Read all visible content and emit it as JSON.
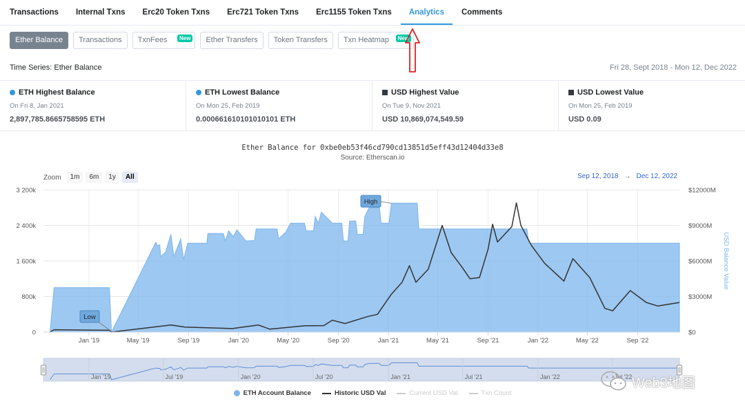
{
  "tabs": [
    {
      "label": "Transactions",
      "active": false
    },
    {
      "label": "Internal Txns",
      "active": false
    },
    {
      "label": "Erc20 Token Txns",
      "active": false
    },
    {
      "label": "Erc721 Token Txns",
      "active": false
    },
    {
      "label": "Erc1155 Token Txns",
      "active": false
    },
    {
      "label": "Analytics",
      "active": true
    },
    {
      "label": "Comments",
      "active": false
    }
  ],
  "subtabs": [
    {
      "label": "Ether Balance",
      "active": true,
      "badge": ""
    },
    {
      "label": "Transactions",
      "active": false,
      "badge": ""
    },
    {
      "label": "TxnFees",
      "active": false,
      "badge": "New"
    },
    {
      "label": "Ether Transfers",
      "active": false,
      "badge": ""
    },
    {
      "label": "Token Transfers",
      "active": false,
      "badge": ""
    },
    {
      "label": "Txn Heatmap",
      "active": false,
      "badge": "New"
    }
  ],
  "time_series": {
    "title": "Time Series: Ether Balance",
    "range": "Fri 28, Sept 2018 - Mon 12, Dec 2022"
  },
  "stats": [
    {
      "title": "ETH Highest Balance",
      "marker": "circle",
      "color": "#3498db",
      "date": "On Fri 8, Jan 2021",
      "value": "2,897,785.8665758595 ETH"
    },
    {
      "title": "ETH Lowest Balance",
      "marker": "circle",
      "color": "#3498db",
      "date": "On Mon 25, Feb 2019",
      "value": "0.000661610101010101 ETH"
    },
    {
      "title": "USD Highest Value",
      "marker": "square",
      "color": "#343a40",
      "date": "On Tue 9, Nov 2021",
      "value": "USD 10,869,074,549.59"
    },
    {
      "title": "USD Lowest Value",
      "marker": "square",
      "color": "#343a40",
      "date": "On Mon 25, Feb 2019",
      "value": "USD 0.09"
    }
  ],
  "chart": {
    "title": "Ether Balance for 0xbe0eb53f46cd790cd13851d5eff43d12404d33e8",
    "subtitle": "Source: Etherscan.io",
    "zoom_label": "Zoom",
    "zoom_buttons": [
      {
        "label": "1m",
        "selected": false
      },
      {
        "label": "6m",
        "selected": false
      },
      {
        "label": "1y",
        "selected": false
      },
      {
        "label": "All",
        "selected": true
      }
    ],
    "range_from": "Sep 12, 2018",
    "range_to": "Dec 12, 2022",
    "range_sep": "→",
    "legend": [
      {
        "label": "ETH Account Balance",
        "kind": "dot",
        "enabled": true,
        "color": "#7cb5ec"
      },
      {
        "label": "Historic USD Val",
        "kind": "line",
        "enabled": true,
        "color": "#333333"
      },
      {
        "label": "Current USD Val",
        "kind": "line",
        "enabled": false,
        "color": "#cccccc"
      },
      {
        "label": "Txn Count",
        "kind": "line",
        "enabled": false,
        "color": "#cccccc"
      }
    ],
    "navigator_ticks": [
      "Jan '19",
      "Jul '19",
      "Jan '20",
      "Jul '20",
      "Jan '21",
      "Jul '21",
      "Jan '22",
      "Jul '22"
    ]
  },
  "chart_data": {
    "type": "area",
    "x_start": "2018-09-12",
    "x_end": "2022-12-12",
    "x_tick_labels": [
      "Jan '19",
      "May '19",
      "Sep '19",
      "Jan '20",
      "May '20",
      "Sep '20",
      "Jan '21",
      "May '21",
      "Sep '21",
      "Jan '22",
      "May '22",
      "Sep '22"
    ],
    "y_left": {
      "ticks": [
        "0",
        "800k",
        "1 600k",
        "2 400k",
        "3 200k"
      ],
      "range": [
        0,
        3200000
      ]
    },
    "y_right": {
      "label": "USD Balance Value",
      "ticks": [
        "$0",
        "$3000M",
        "$6000M",
        "$9000M",
        "$12000M"
      ],
      "range": [
        0,
        12000
      ]
    },
    "annotations": [
      {
        "label": "High",
        "date": "2021-01-08",
        "value": 2897786
      },
      {
        "label": "Low",
        "date": "2019-02-25",
        "value": 0
      }
    ],
    "series": [
      {
        "name": "ETH Account Balance",
        "axis": "left",
        "unit": "ETH",
        "points": [
          [
            "2018-09-28",
            0
          ],
          [
            "2018-10-08",
            1000000
          ],
          [
            "2019-02-20",
            1000000
          ],
          [
            "2019-02-25",
            0
          ],
          [
            "2019-06-13",
            2020000
          ],
          [
            "2019-06-17",
            1950000
          ],
          [
            "2019-06-23",
            1960000
          ],
          [
            "2019-06-25",
            1700000
          ],
          [
            "2019-07-07",
            1800000
          ],
          [
            "2019-07-20",
            2200000
          ],
          [
            "2019-07-27",
            1700000
          ],
          [
            "2019-08-13",
            2100000
          ],
          [
            "2019-08-20",
            1630000
          ],
          [
            "2019-08-30",
            2000000
          ],
          [
            "2019-10-16",
            2000000
          ],
          [
            "2019-10-18",
            2220000
          ],
          [
            "2019-11-25",
            2220000
          ],
          [
            "2019-11-30",
            2050000
          ],
          [
            "2019-12-08",
            2280000
          ],
          [
            "2019-12-19",
            2150000
          ],
          [
            "2019-12-28",
            2300000
          ],
          [
            "2020-01-19",
            2050000
          ],
          [
            "2020-02-09",
            2060000
          ],
          [
            "2020-02-13",
            2320000
          ],
          [
            "2020-04-04",
            2320000
          ],
          [
            "2020-04-08",
            2100000
          ],
          [
            "2020-04-25",
            2250000
          ],
          [
            "2020-05-07",
            2450000
          ],
          [
            "2020-06-10",
            2450000
          ],
          [
            "2020-06-14",
            2280000
          ],
          [
            "2020-07-02",
            2280000
          ],
          [
            "2020-07-06",
            2600000
          ],
          [
            "2020-07-14",
            2450000
          ],
          [
            "2020-07-21",
            2700000
          ],
          [
            "2020-08-17",
            2450000
          ],
          [
            "2020-09-09",
            2450000
          ],
          [
            "2020-09-13",
            2050000
          ],
          [
            "2020-09-24",
            2050000
          ],
          [
            "2020-09-28",
            2500000
          ],
          [
            "2020-10-13",
            2500000
          ],
          [
            "2020-10-17",
            2200000
          ],
          [
            "2020-10-31",
            2200000
          ],
          [
            "2020-11-04",
            2600000
          ],
          [
            "2020-11-15",
            2800000
          ],
          [
            "2020-12-10",
            2800000
          ],
          [
            "2020-12-14",
            2450000
          ],
          [
            "2020-12-29",
            2450000
          ],
          [
            "2021-01-02",
            2450000
          ],
          [
            "2021-01-08",
            2900000
          ],
          [
            "2021-03-12",
            2900000
          ],
          [
            "2021-03-16",
            2320000
          ],
          [
            "2021-12-05",
            2320000
          ],
          [
            "2021-12-09",
            2000000
          ],
          [
            "2022-12-12",
            2000000
          ]
        ]
      },
      {
        "name": "Historic USD Val",
        "axis": "right",
        "unit": "USD M",
        "points": [
          [
            "2018-09-28",
            0
          ],
          [
            "2018-10-08",
            200
          ],
          [
            "2019-02-20",
            150
          ],
          [
            "2019-02-25",
            0
          ],
          [
            "2019-07-20",
            600
          ],
          [
            "2019-08-23",
            420
          ],
          [
            "2019-12-17",
            300
          ],
          [
            "2020-02-18",
            600
          ],
          [
            "2020-03-17",
            250
          ],
          [
            "2020-06-10",
            530
          ],
          [
            "2020-07-27",
            550
          ],
          [
            "2020-08-17",
            1000
          ],
          [
            "2020-09-17",
            720
          ],
          [
            "2020-11-10",
            1300
          ],
          [
            "2020-12-05",
            1500
          ],
          [
            "2021-01-08",
            3200
          ],
          [
            "2021-02-03",
            4200
          ],
          [
            "2021-02-21",
            5600
          ],
          [
            "2021-03-09",
            4200
          ],
          [
            "2021-04-08",
            5300
          ],
          [
            "2021-05-12",
            9000
          ],
          [
            "2021-06-03",
            6700
          ],
          [
            "2021-06-29",
            5500
          ],
          [
            "2021-07-19",
            4500
          ],
          [
            "2021-08-11",
            4600
          ],
          [
            "2021-09-01",
            7000
          ],
          [
            "2021-09-12",
            9100
          ],
          [
            "2021-09-24",
            7600
          ],
          [
            "2021-10-29",
            8900
          ],
          [
            "2021-11-09",
            10900
          ],
          [
            "2021-11-20",
            9000
          ],
          [
            "2021-12-16",
            7300
          ],
          [
            "2022-01-17",
            5800
          ],
          [
            "2022-03-05",
            4300
          ],
          [
            "2022-03-27",
            6200
          ],
          [
            "2022-05-07",
            4600
          ],
          [
            "2022-06-13",
            2000
          ],
          [
            "2022-07-02",
            1800
          ],
          [
            "2022-08-14",
            3500
          ],
          [
            "2022-09-22",
            2500
          ],
          [
            "2022-10-20",
            2200
          ],
          [
            "2022-12-12",
            2500
          ]
        ]
      }
    ]
  }
}
